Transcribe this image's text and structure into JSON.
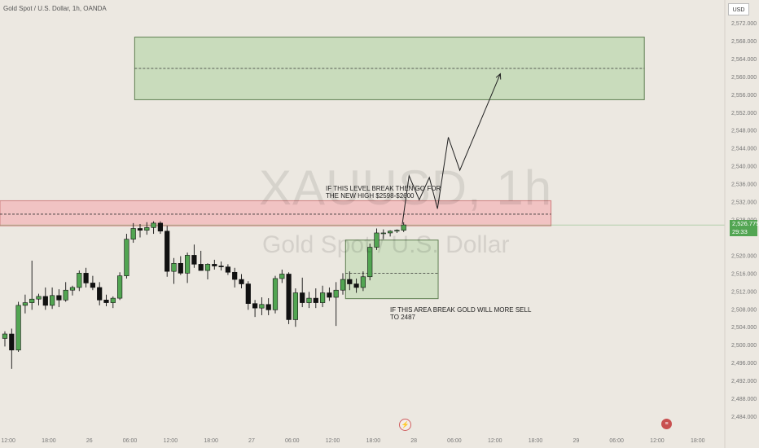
{
  "header": {
    "title": "Gold Spot / U.S. Dollar, 1h, OANDA"
  },
  "toolbar": {
    "currency_label": "USD"
  },
  "watermark": {
    "symbol": "XAUUSD, 1h",
    "name": "Gold Spot / U.S. Dollar"
  },
  "last_price": {
    "value": "2,526.775",
    "countdown": "29:33"
  },
  "annotations": {
    "break_up_line1": "IF THIS LEVEL BREAK THEN GO FOR",
    "break_up_line2": "THE NEW HIGH $2598-$2600",
    "sell_line1": "IF THIS AREA BREAK GOLD WILL MORE SELL",
    "sell_line2": "TO 2487"
  },
  "icons": {
    "event_left": "lightning-icon",
    "event_right": "us-flag-icon"
  },
  "colors": {
    "up": "#52a552",
    "down": "#111111",
    "target_zone": "#c9dcbc",
    "resistance_zone": "#f1c3c3",
    "price_line": "#52a552"
  },
  "chart_data": {
    "type": "candlestick",
    "symbol": "XAUUSD",
    "timeframe": "1h",
    "y_ticks": [
      "2,572.000",
      "2,568.000",
      "2,564.000",
      "2,560.000",
      "2,556.000",
      "2,552.000",
      "2,548.000",
      "2,544.000",
      "2,540.000",
      "2,536.000",
      "2,532.000",
      "2,528.000",
      "2,520.000",
      "2,516.000",
      "2,512.000",
      "2,508.000",
      "2,504.000",
      "2,500.000",
      "2,496.000",
      "2,492.000",
      "2,488.000",
      "2,484.000"
    ],
    "y_tick_values": [
      2572,
      2568,
      2564,
      2560,
      2556,
      2552,
      2548,
      2544,
      2540,
      2536,
      2532,
      2528,
      2520,
      2516,
      2512,
      2508,
      2504,
      2500,
      2496,
      2492,
      2488,
      2484
    ],
    "ylim": [
      2482.5,
      2574.2
    ],
    "x_ticks": [
      {
        "label": "12:00",
        "bar": 0.5
      },
      {
        "label": "18:00",
        "bar": 6.5
      },
      {
        "label": "26",
        "bar": 12.5
      },
      {
        "label": "06:00",
        "bar": 18.5
      },
      {
        "label": "12:00",
        "bar": 24.5
      },
      {
        "label": "18:00",
        "bar": 30.5
      },
      {
        "label": "27",
        "bar": 36.5
      },
      {
        "label": "06:00",
        "bar": 42.5
      },
      {
        "label": "12:00",
        "bar": 48.5
      },
      {
        "label": "18:00",
        "bar": 54.5
      },
      {
        "label": "28",
        "bar": 60.5
      },
      {
        "label": "06:00",
        "bar": 66.5
      },
      {
        "label": "12:00",
        "bar": 72.5
      },
      {
        "label": "18:00",
        "bar": 78.5
      },
      {
        "label": "29",
        "bar": 84.5
      },
      {
        "label": "06:00",
        "bar": 90.5
      },
      {
        "label": "12:00",
        "bar": 96.5
      },
      {
        "label": "18:00",
        "bar": 102.5
      }
    ],
    "candles": [
      {
        "o": 2501.4,
        "h": 2503.0,
        "l": 2499.6,
        "c": 2502.4
      },
      {
        "o": 2502.4,
        "h": 2503.6,
        "l": 2494.6,
        "c": 2498.8
      },
      {
        "o": 2498.8,
        "h": 2509.6,
        "l": 2498.4,
        "c": 2508.8
      },
      {
        "o": 2508.8,
        "h": 2511.2,
        "l": 2507.0,
        "c": 2509.4
      },
      {
        "o": 2509.4,
        "h": 2518.8,
        "l": 2507.8,
        "c": 2510.2
      },
      {
        "o": 2510.2,
        "h": 2511.4,
        "l": 2508.8,
        "c": 2510.8
      },
      {
        "o": 2510.8,
        "h": 2512.8,
        "l": 2507.8,
        "c": 2508.8
      },
      {
        "o": 2508.8,
        "h": 2512.8,
        "l": 2508.0,
        "c": 2511.0
      },
      {
        "o": 2511.0,
        "h": 2512.4,
        "l": 2508.4,
        "c": 2510.0
      },
      {
        "o": 2510.0,
        "h": 2514.0,
        "l": 2509.6,
        "c": 2512.2
      },
      {
        "o": 2512.2,
        "h": 2513.2,
        "l": 2511.0,
        "c": 2512.8
      },
      {
        "o": 2512.8,
        "h": 2516.6,
        "l": 2512.0,
        "c": 2516.0
      },
      {
        "o": 2516.0,
        "h": 2517.2,
        "l": 2512.8,
        "c": 2513.8
      },
      {
        "o": 2513.8,
        "h": 2515.4,
        "l": 2512.2,
        "c": 2512.8
      },
      {
        "o": 2512.8,
        "h": 2514.0,
        "l": 2508.8,
        "c": 2510.0
      },
      {
        "o": 2510.0,
        "h": 2511.2,
        "l": 2508.6,
        "c": 2509.4
      },
      {
        "o": 2509.4,
        "h": 2510.8,
        "l": 2508.2,
        "c": 2510.4
      },
      {
        "o": 2510.4,
        "h": 2516.2,
        "l": 2510.0,
        "c": 2515.4
      },
      {
        "o": 2515.4,
        "h": 2524.8,
        "l": 2514.8,
        "c": 2523.6
      },
      {
        "o": 2523.6,
        "h": 2527.2,
        "l": 2522.8,
        "c": 2526.0
      },
      {
        "o": 2526.0,
        "h": 2527.0,
        "l": 2524.0,
        "c": 2525.6
      },
      {
        "o": 2525.6,
        "h": 2527.4,
        "l": 2524.6,
        "c": 2526.2
      },
      {
        "o": 2526.2,
        "h": 2527.6,
        "l": 2524.8,
        "c": 2527.2
      },
      {
        "o": 2527.2,
        "h": 2527.6,
        "l": 2524.8,
        "c": 2525.4
      },
      {
        "o": 2525.4,
        "h": 2526.6,
        "l": 2515.2,
        "c": 2516.4
      },
      {
        "o": 2516.4,
        "h": 2519.4,
        "l": 2513.6,
        "c": 2518.2
      },
      {
        "o": 2518.2,
        "h": 2519.8,
        "l": 2515.6,
        "c": 2516.0
      },
      {
        "o": 2516.0,
        "h": 2520.6,
        "l": 2513.8,
        "c": 2520.0
      },
      {
        "o": 2520.0,
        "h": 2522.4,
        "l": 2517.2,
        "c": 2518.0
      },
      {
        "o": 2518.0,
        "h": 2521.0,
        "l": 2517.0,
        "c": 2516.6
      },
      {
        "o": 2516.6,
        "h": 2518.2,
        "l": 2514.6,
        "c": 2518.0
      },
      {
        "o": 2518.0,
        "h": 2519.0,
        "l": 2516.8,
        "c": 2517.6
      },
      {
        "o": 2517.6,
        "h": 2518.6,
        "l": 2516.6,
        "c": 2517.4
      },
      {
        "o": 2517.4,
        "h": 2518.0,
        "l": 2515.6,
        "c": 2516.2
      },
      {
        "o": 2516.2,
        "h": 2517.2,
        "l": 2512.8,
        "c": 2514.6
      },
      {
        "o": 2514.6,
        "h": 2515.8,
        "l": 2512.6,
        "c": 2513.6
      },
      {
        "o": 2513.6,
        "h": 2514.2,
        "l": 2507.8,
        "c": 2509.2
      },
      {
        "o": 2509.2,
        "h": 2510.0,
        "l": 2506.2,
        "c": 2508.2
      },
      {
        "o": 2508.2,
        "h": 2510.6,
        "l": 2506.6,
        "c": 2509.0
      },
      {
        "o": 2509.0,
        "h": 2510.4,
        "l": 2506.6,
        "c": 2507.8
      },
      {
        "o": 2507.8,
        "h": 2515.4,
        "l": 2507.0,
        "c": 2514.8
      },
      {
        "o": 2514.8,
        "h": 2516.8,
        "l": 2513.8,
        "c": 2515.8
      },
      {
        "o": 2515.8,
        "h": 2516.2,
        "l": 2504.6,
        "c": 2505.6
      },
      {
        "o": 2505.6,
        "h": 2512.6,
        "l": 2504.0,
        "c": 2511.6
      },
      {
        "o": 2511.6,
        "h": 2515.0,
        "l": 2508.4,
        "c": 2509.4
      },
      {
        "o": 2509.4,
        "h": 2511.8,
        "l": 2508.2,
        "c": 2510.4
      },
      {
        "o": 2510.4,
        "h": 2512.6,
        "l": 2508.2,
        "c": 2509.4
      },
      {
        "o": 2509.4,
        "h": 2513.2,
        "l": 2508.4,
        "c": 2511.6
      },
      {
        "o": 2511.6,
        "h": 2512.8,
        "l": 2509.8,
        "c": 2510.6
      },
      {
        "o": 2510.6,
        "h": 2514.0,
        "l": 2504.2,
        "c": 2512.2
      },
      {
        "o": 2512.2,
        "h": 2516.0,
        "l": 2511.2,
        "c": 2514.6
      },
      {
        "o": 2514.6,
        "h": 2516.4,
        "l": 2512.2,
        "c": 2513.6
      },
      {
        "o": 2513.6,
        "h": 2514.8,
        "l": 2511.6,
        "c": 2512.8
      },
      {
        "o": 2512.8,
        "h": 2516.4,
        "l": 2512.0,
        "c": 2515.2
      },
      {
        "o": 2515.2,
        "h": 2522.6,
        "l": 2514.4,
        "c": 2521.8
      },
      {
        "o": 2521.8,
        "h": 2526.0,
        "l": 2521.2,
        "c": 2525.0
      },
      {
        "o": 2525.0,
        "h": 2525.8,
        "l": 2523.6,
        "c": 2525.0
      },
      {
        "o": 2525.0,
        "h": 2525.6,
        "l": 2524.2,
        "c": 2525.4
      },
      {
        "o": 2525.4,
        "h": 2525.8,
        "l": 2525.0,
        "c": 2525.6
      },
      {
        "o": 2525.6,
        "h": 2527.4,
        "l": 2525.2,
        "c": 2526.8
      }
    ],
    "zones": [
      {
        "type": "target",
        "y_top": 2568.8,
        "y_bottom": 2554.8,
        "midline": 2561.8,
        "bar_start": 19.2,
        "bar_end": 94.6
      },
      {
        "type": "resistance",
        "y_top": 2532.2,
        "y_bottom": 2526.6,
        "midline": 2529.2,
        "bar_start": -2,
        "bar_end": 80.8
      },
      {
        "type": "demand",
        "y_top": 2523.4,
        "y_bottom": 2510.3,
        "midline": 2516.0,
        "bar_start": 50.4,
        "bar_end": 64.1
      }
    ],
    "projection_path": [
      {
        "bar": 58.8,
        "y": 2527.0
      },
      {
        "bar": 59.8,
        "y": 2537.8
      },
      {
        "bar": 61.3,
        "y": 2532.4
      },
      {
        "bar": 62.8,
        "y": 2537.4
      },
      {
        "bar": 64.0,
        "y": 2530.4
      },
      {
        "bar": 65.6,
        "y": 2546.4
      },
      {
        "bar": 67.3,
        "y": 2539.0
      },
      {
        "bar": 73.3,
        "y": 2560.6
      }
    ],
    "last_price_value": 2526.775
  }
}
